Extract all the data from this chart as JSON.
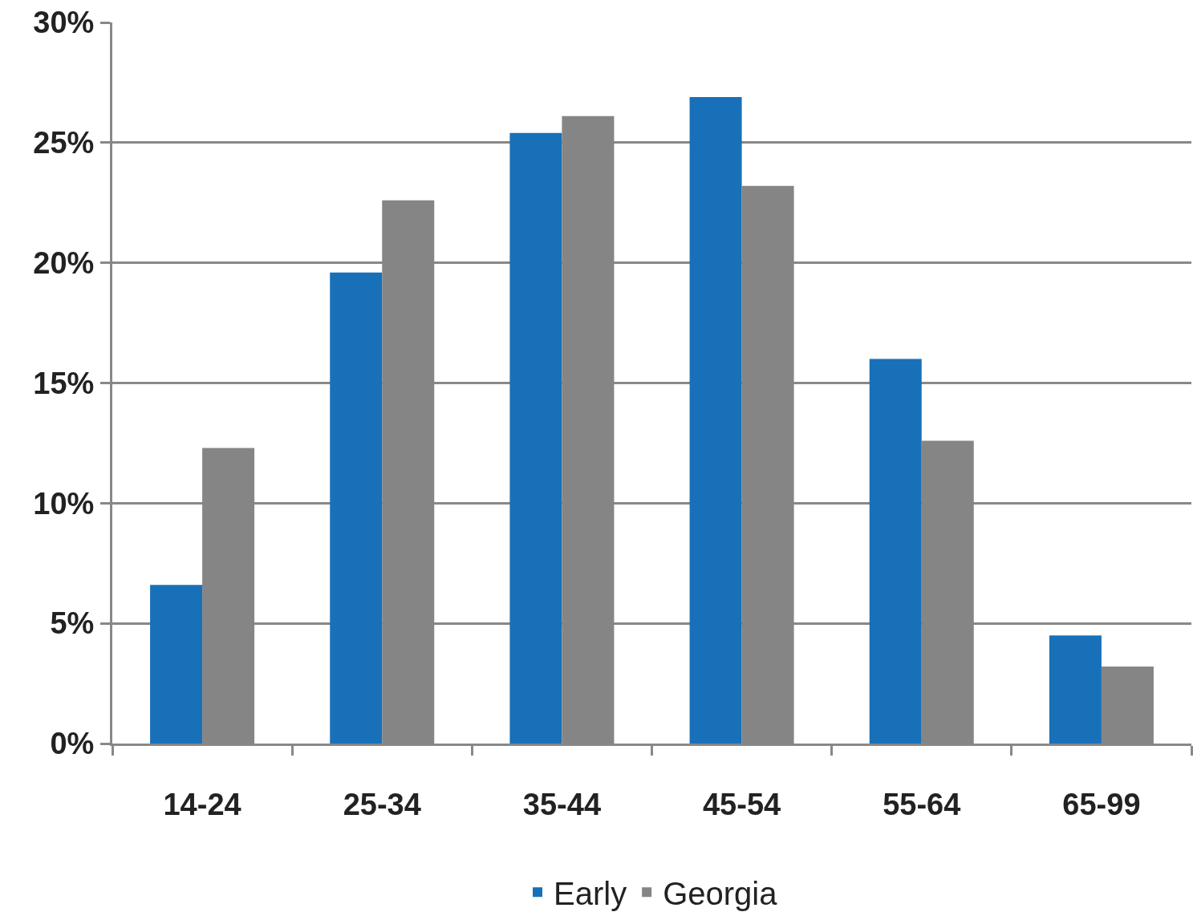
{
  "chart_data": {
    "type": "bar",
    "categories": [
      "14-24",
      "25-34",
      "35-44",
      "45-54",
      "55-64",
      "65-99"
    ],
    "series": [
      {
        "name": "Early",
        "color": "#1870b9",
        "values": [
          6.6,
          19.6,
          25.4,
          26.9,
          16.0,
          4.5
        ]
      },
      {
        "name": "Georgia",
        "color": "#858585",
        "values": [
          12.3,
          22.6,
          26.1,
          23.2,
          12.6,
          3.2
        ]
      }
    ],
    "ylim": [
      0,
      30
    ],
    "yticks": [
      {
        "value": 0,
        "label": "0%"
      },
      {
        "value": 5,
        "label": "5%"
      },
      {
        "value": 10,
        "label": "10%"
      },
      {
        "value": 15,
        "label": "15%"
      },
      {
        "value": 20,
        "label": "20%"
      },
      {
        "value": 25,
        "label": "25%"
      },
      {
        "value": 30,
        "label": "30%"
      }
    ],
    "grid": "y",
    "legend": "bottom"
  }
}
